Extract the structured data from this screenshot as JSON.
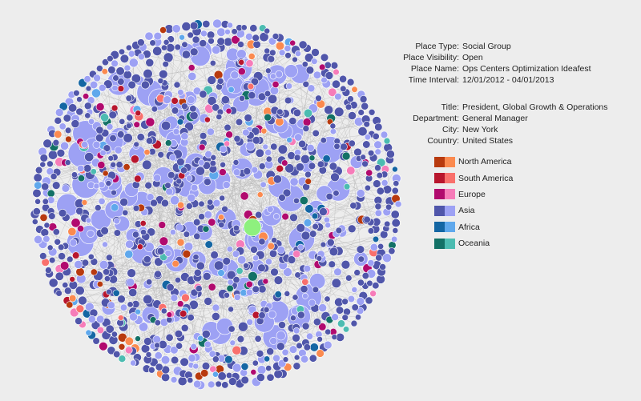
{
  "details": {
    "place": [
      {
        "key": "Place Type:",
        "value": "Social Group"
      },
      {
        "key": "Place Visibility:",
        "value": "Open"
      },
      {
        "key": "Place Name:",
        "value": "Ops Centers Optimization Ideafest"
      },
      {
        "key": "Time Interval:",
        "value": "12/01/2012 - 04/01/2013"
      }
    ],
    "person": [
      {
        "key": "Title:",
        "value": "President, Global Growth & Operations"
      },
      {
        "key": "Department:",
        "value": "General Manager"
      },
      {
        "key": "City:",
        "value": "New York"
      },
      {
        "key": "Country:",
        "value": "United States"
      }
    ]
  },
  "legend": [
    {
      "label": "North America",
      "dark": "#b83a0e",
      "light": "#fb8a4f"
    },
    {
      "label": "South America",
      "dark": "#b8162d",
      "light": "#f9706c"
    },
    {
      "label": "Europe",
      "dark": "#b10a6e",
      "light": "#f67cb9"
    },
    {
      "label": "Asia",
      "dark": "#5056aa",
      "light": "#9da1f4"
    },
    {
      "label": "Africa",
      "dark": "#1466a3",
      "light": "#5fa8ec"
    },
    {
      "label": "Oceania",
      "dark": "#137166",
      "light": "#4cbcb1"
    }
  ],
  "colors": {
    "background": "#ededed",
    "edge": "#b9b9b9",
    "focus_node": "#8ef07e",
    "node_stroke": "#ffffff"
  }
}
